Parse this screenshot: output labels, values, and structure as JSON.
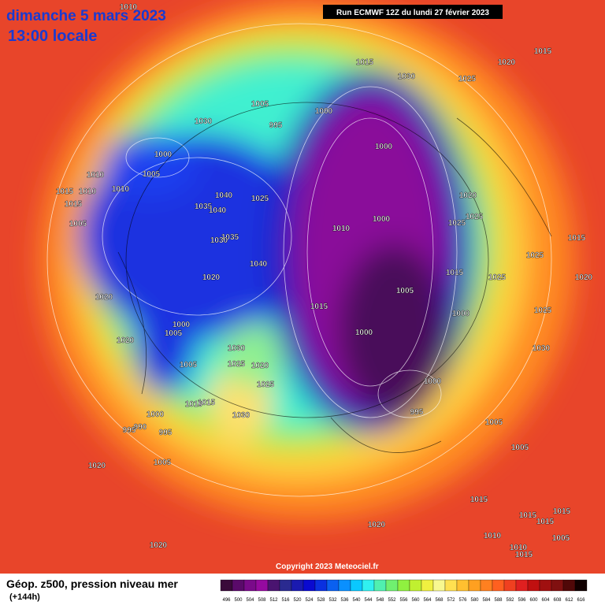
{
  "header": {
    "date_title": "dimanche 5 mars 2023",
    "time_title": "13:00 locale",
    "run_info": "Run ECMWF 12Z du lundi 27 février 2023"
  },
  "map": {
    "pressure_labels": [
      1010,
      1015,
      1030,
      1025,
      1020,
      1015,
      1005,
      1000,
      995,
      1030,
      1000,
      1000,
      1010,
      1005,
      1015,
      1010,
      1010,
      1015,
      1040,
      1025,
      1035,
      1040,
      1020,
      1025,
      1000,
      1010,
      1025,
      1005,
      1035,
      1030,
      1015,
      1025,
      1040,
      1020,
      1015,
      1025,
      1020,
      1005,
      1020,
      1015,
      1025,
      1000,
      1000,
      1005,
      1000,
      1020,
      1030,
      1030,
      1025,
      1020,
      1005,
      1025,
      1000,
      1015,
      1010,
      1030,
      1000,
      995,
      1005,
      990,
      995,
      995,
      1005,
      1020,
      1005,
      1015,
      1015,
      1020,
      1015,
      1015,
      1010,
      1005,
      1010,
      1020,
      1015
    ]
  },
  "footer": {
    "copyright": "Copyright 2023 Meteociel.fr",
    "legend_title": "Géop. z500, pression niveau mer",
    "legend_subtitle": "(+144h)"
  },
  "color_scale": {
    "values": [
      496,
      500,
      504,
      508,
      512,
      516,
      520,
      524,
      528,
      532,
      536,
      540,
      544,
      548,
      552,
      556,
      560,
      564,
      568,
      572,
      576,
      580,
      584,
      588,
      592,
      596,
      600,
      604,
      608,
      612,
      616
    ],
    "colors": [
      "#3a0a3a",
      "#5a0a6a",
      "#7a0a8a",
      "#960aa0",
      "#4a1470",
      "#2a2a90",
      "#1a1ab0",
      "#0a0ad0",
      "#0a30e0",
      "#0a60f0",
      "#0a90ff",
      "#0ac8ff",
      "#30f0f0",
      "#50f0b0",
      "#70f070",
      "#90f040",
      "#c0f030",
      "#f0f040",
      "#f8f890",
      "#ffe050",
      "#ffc030",
      "#ffa020",
      "#ff8020",
      "#ff6020",
      "#f04020",
      "#e02020",
      "#c01010",
      "#a01010",
      "#801010",
      "#500808",
      "#100000"
    ]
  }
}
